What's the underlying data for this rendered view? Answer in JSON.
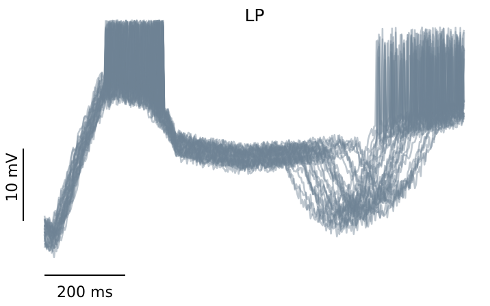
{
  "chart_data": {
    "type": "line",
    "title": "LP",
    "xlabel": "",
    "ylabel": "",
    "grid": false,
    "legend": "none",
    "trace_color": "#6f8294",
    "trace_opacity": 0.45,
    "x_unit": "ms",
    "y_unit": "mV",
    "xlim": [
      0,
      1050
    ],
    "ylim": [
      -58,
      -26
    ],
    "scale_bars": {
      "time": {
        "value": 200,
        "unit": "ms",
        "label": "200 ms"
      },
      "voltage": {
        "value": 10,
        "unit": "mV",
        "label": "10 mV"
      }
    },
    "trace_count": 30,
    "mean_waveform": {
      "x": [
        0,
        20,
        50,
        90,
        130,
        150,
        160,
        175,
        250,
        310,
        330,
        400,
        500,
        600,
        700,
        800,
        900,
        1000,
        1040
      ],
      "y": [
        -53,
        -55,
        -50,
        -42,
        -36,
        -32,
        -34,
        -33,
        -34,
        -38,
        -41,
        -42,
        -43,
        -42.5,
        -42,
        -41,
        -38,
        -37,
        -36
      ]
    },
    "burst_spikes": {
      "x_range": [
        150,
        300
      ],
      "peak_y": -23
    }
  }
}
